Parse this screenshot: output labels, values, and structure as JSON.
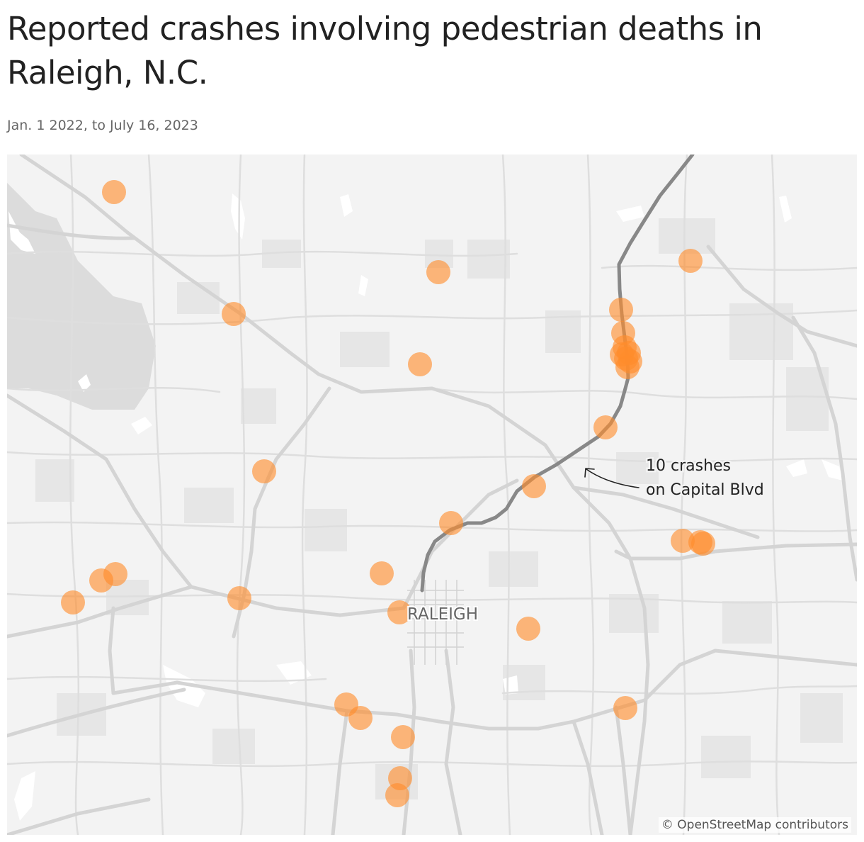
{
  "header": {
    "title": "Reported crashes involving pedestrian deaths in Raleigh, N.C.",
    "subtitle": "Jan. 1 2022, to July 16, 2023"
  },
  "map": {
    "city_label": "RALEIGH",
    "annotation_line1": "10 crashes",
    "annotation_line2": "on Capital Blvd",
    "attribution": "© OpenStreetMap contributors",
    "crash_count": 33,
    "colors": {
      "crash_marker": "#ff8d2b",
      "highlighted_route": "#888888",
      "background": "#f3f3f3",
      "roads": "#d4d4d4",
      "water": "#ffffff"
    },
    "icons": {
      "crash_marker": "crash-marker-icon",
      "annotation_arrow": "arrow-icon"
    }
  }
}
